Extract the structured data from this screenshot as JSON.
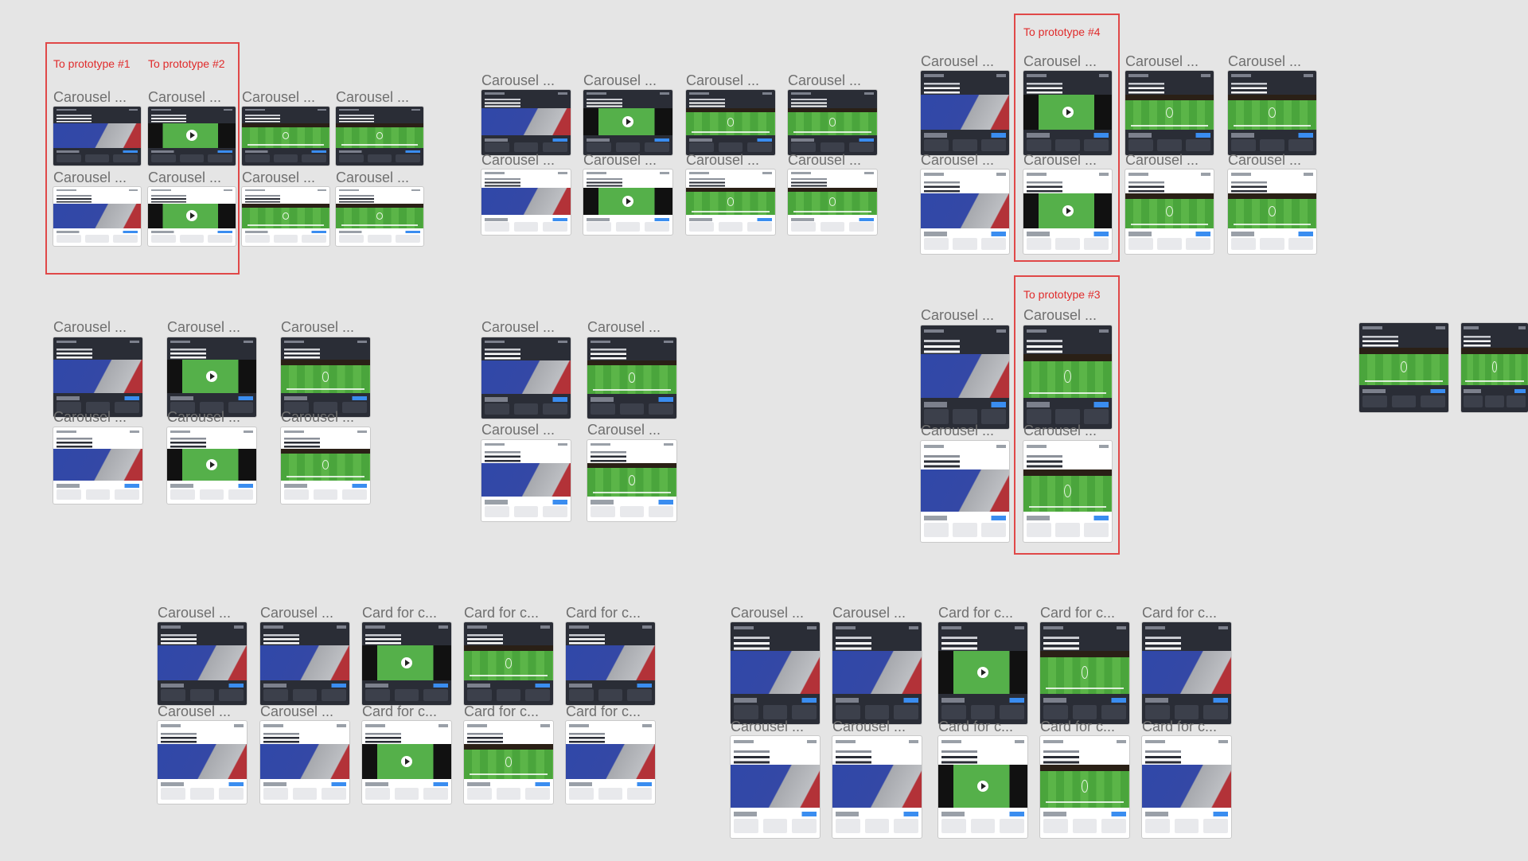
{
  "canvas": {
    "background": "#e5e5e5"
  },
  "colors": {
    "frame_label": "#6f6f6f",
    "prototype_accent": "#e02b2b",
    "card_dark": "#2a2d36",
    "card_light": "#ffffff",
    "map_blue": "#3048a8",
    "map_red": "#b33238",
    "pitch_green": "#4aa53c",
    "link_blue": "#3a8df0"
  },
  "prototype_labels": {
    "p1": "To prototype #1",
    "p2": "To prototype #2",
    "p3": "To prototype #3",
    "p4": "To prototype #4"
  },
  "frame_labels": {
    "carousel": "Carousel ...",
    "card_for": "Card for c..."
  }
}
